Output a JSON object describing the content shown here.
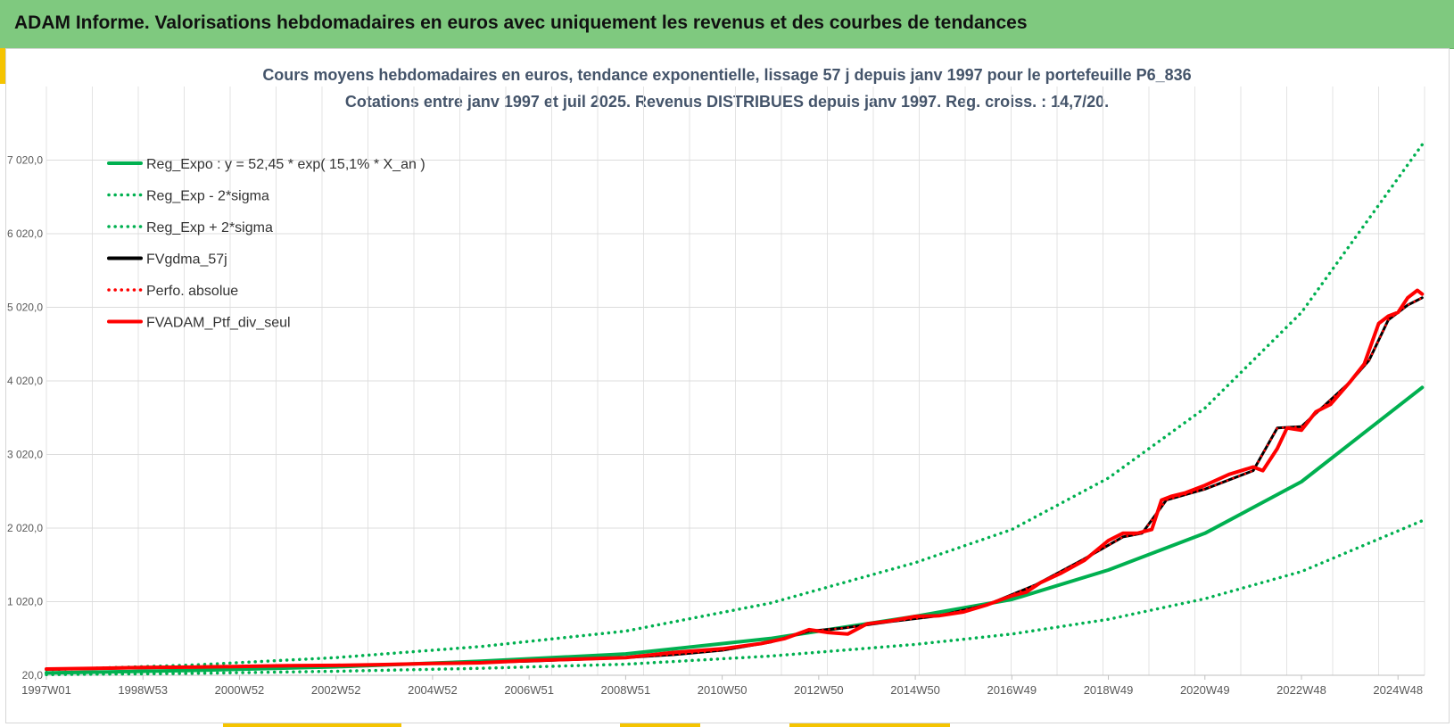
{
  "banner": {
    "title": "ADAM Informe. Valorisations hebdomadaires en euros avec uniquement les revenus et des courbes de tendances"
  },
  "colors": {
    "banner_bg": "#7fc97f",
    "accent": "#f5c400",
    "title_text": "#44546a",
    "reg_green": "#00b050",
    "black": "#000000",
    "red": "#ff0000"
  },
  "chart_data": {
    "type": "line",
    "title": "Cours moyens hebdomadaires  en euros, tendance exponentielle, lissage 57 j depuis janv 1997 pour le portefeuille P6_836",
    "subtitle": "Cotations entre janv 1997 et juil 2025. Revenus DISTRIBUES depuis janv 1997. Reg. croiss. : 14,7/20.",
    "xlabel": "",
    "ylabel": "",
    "x_start": 1997.0,
    "x_end": 2025.55,
    "ylim": [
      20,
      8020
    ],
    "y_ticks": [
      20,
      1020,
      2020,
      3020,
      4020,
      5020,
      6020,
      7020
    ],
    "y_tick_labels": [
      "20,0",
      "1 020,0",
      "2 020,0",
      "3 020,0",
      "4 020,0",
      "5 020,0",
      "6 020,0",
      "7 020,0"
    ],
    "x_tick_labels": [
      "1997W01",
      "1998W53",
      "2000W52",
      "2002W52",
      "2004W52",
      "2006W51",
      "2008W51",
      "2010W50",
      "2012W50",
      "2014W50",
      "2016W49",
      "2018W49",
      "2020W49",
      "2022W48",
      "2024W48"
    ],
    "x_tick_years": [
      1997.0,
      1999.0,
      2001.0,
      2003.0,
      2005.0,
      2007.0,
      2009.0,
      2011.0,
      2013.0,
      2015.0,
      2017.0,
      2019.0,
      2021.0,
      2023.0,
      2025.0
    ],
    "grid": true,
    "legend_position": "top-left",
    "series": [
      {
        "name": "Reg_Expo : y = 52,45 * exp( 15,1% *  X_an )",
        "style": "solid",
        "color": "#00b050",
        "x": [
          1997,
          2000,
          2003,
          2006,
          2009,
          2012,
          2015,
          2017,
          2019,
          2021,
          2023,
          2025.5
        ],
        "y": [
          52,
          85,
          135,
          210,
          310,
          520,
          820,
          1050,
          1450,
          1950,
          2650,
          3930
        ]
      },
      {
        "name": "Reg_Exp - 2*sigma",
        "style": "dotted",
        "color": "#00b050",
        "x": [
          1997,
          2000,
          2003,
          2006,
          2009,
          2012,
          2015,
          2017,
          2019,
          2021,
          2023,
          2025.5
        ],
        "y": [
          28,
          45,
          75,
          115,
          170,
          280,
          440,
          580,
          780,
          1060,
          1430,
          2120
        ]
      },
      {
        "name": "Reg_Exp + 2*sigma",
        "style": "dotted",
        "color": "#00b050",
        "x": [
          1997,
          2000,
          2003,
          2006,
          2009,
          2012,
          2015,
          2017,
          2019,
          2021,
          2023,
          2025.5
        ],
        "y": [
          95,
          158,
          260,
          410,
          620,
          1000,
          1550,
          2000,
          2700,
          3650,
          4950,
          7230
        ]
      },
      {
        "name": "FVgdma_57j",
        "style": "solid",
        "color": "#000000",
        "x": [
          1997,
          1999,
          2001,
          2003,
          2005,
          2007,
          2009,
          2010,
          2011,
          2012,
          2012.8,
          2013.5,
          2014.5,
          2015.5,
          2016.5,
          2017.5,
          2018.5,
          2019.3,
          2019.7,
          2020.2,
          2021,
          2022,
          2022.5,
          2023,
          2023.5,
          2024,
          2024.4,
          2024.8,
          2025.2,
          2025.5
        ],
        "y": [
          100,
          120,
          140,
          155,
          180,
          210,
          260,
          300,
          360,
          470,
          620,
          660,
          750,
          830,
          980,
          1250,
          1600,
          1900,
          1950,
          2400,
          2550,
          2800,
          3380,
          3400,
          3700,
          4000,
          4300,
          4850,
          5050,
          5150
        ]
      },
      {
        "name": "Perfo. absolue",
        "style": "dotted",
        "color": "#ff0000",
        "x": [
          1997,
          1999,
          2001,
          2003,
          2005,
          2007,
          2009,
          2010,
          2011,
          2012,
          2012.8,
          2013.5,
          2014.5,
          2015.5,
          2016.5,
          2017.5,
          2018.5,
          2019.3,
          2019.7,
          2020.2,
          2021,
          2022,
          2022.5,
          2023,
          2023.5,
          2024,
          2024.4,
          2024.8,
          2025.2,
          2025.5
        ],
        "y": [
          100,
          120,
          140,
          155,
          180,
          210,
          260,
          300,
          360,
          470,
          620,
          660,
          750,
          830,
          980,
          1250,
          1600,
          1900,
          1950,
          2400,
          2550,
          2800,
          3380,
          3400,
          3700,
          4000,
          4300,
          4850,
          5050,
          5150
        ]
      },
      {
        "name": "FVADAM_Ptf_div_seul",
        "style": "solid",
        "color": "#ff0000",
        "x": [
          1997,
          1998,
          1999,
          2000,
          2001,
          2002,
          2003,
          2004,
          2005,
          2006,
          2007,
          2008,
          2009,
          2010,
          2011,
          2011.8,
          2012.3,
          2012.8,
          2013.2,
          2013.6,
          2014,
          2014.5,
          2015,
          2015.5,
          2016,
          2016.5,
          2017,
          2017.3,
          2017.6,
          2018,
          2018.5,
          2019,
          2019.3,
          2019.6,
          2019.9,
          2020.1,
          2020.3,
          2020.6,
          2021,
          2021.5,
          2022,
          2022.2,
          2022.5,
          2022.7,
          2023,
          2023.3,
          2023.6,
          2024,
          2024.3,
          2024.6,
          2024.8,
          2025,
          2025.2,
          2025.4,
          2025.5
        ],
        "y": [
          105,
          115,
          125,
          130,
          140,
          150,
          155,
          165,
          180,
          190,
          220,
          240,
          260,
          330,
          380,
          450,
          520,
          640,
          600,
          580,
          720,
          760,
          820,
          830,
          880,
          980,
          1100,
          1150,
          1280,
          1400,
          1580,
          1850,
          1950,
          1950,
          2000,
          2400,
          2450,
          2500,
          2600,
          2750,
          2850,
          2800,
          3100,
          3380,
          3350,
          3600,
          3700,
          4000,
          4250,
          4800,
          4900,
          4950,
          5150,
          5250,
          5200
        ]
      }
    ]
  }
}
